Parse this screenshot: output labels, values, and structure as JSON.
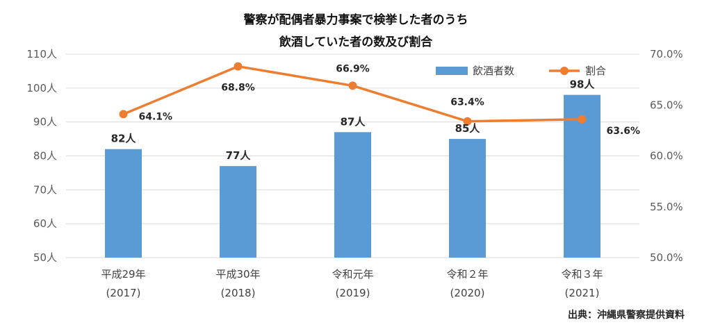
{
  "chart_data": {
    "type": "bar",
    "title_lines": [
      "警察が配偶者暴力事案で検挙した者のうち",
      "飲酒していた者の数及び割合"
    ],
    "categories": [
      {
        "name": "平成29年",
        "year": "(2017)"
      },
      {
        "name": "平成30年",
        "year": "(2018)"
      },
      {
        "name": "令和元年",
        "year": "(2019)"
      },
      {
        "name": "令和２年",
        "year": "(2020)"
      },
      {
        "name": "令和３年",
        "year": "(2021)"
      }
    ],
    "series": [
      {
        "name": "飲酒者数",
        "type": "bar",
        "axis": "left",
        "color": "#5b9bd5",
        "values": [
          82,
          77,
          87,
          85,
          98
        ],
        "labels": [
          "82人",
          "77人",
          "87人",
          "85人",
          "98人"
        ]
      },
      {
        "name": "割合",
        "type": "line",
        "axis": "right",
        "color": "#ed7d31",
        "values": [
          64.1,
          68.8,
          66.9,
          63.4,
          63.6
        ],
        "labels": [
          "64.1%",
          "68.8%",
          "66.9%",
          "63.4%",
          "63.6%"
        ]
      }
    ],
    "y_left": {
      "min": 50,
      "max": 110,
      "ticks": [
        50,
        60,
        70,
        80,
        90,
        100,
        110
      ],
      "tick_labels": [
        "50人",
        "60人",
        "70人",
        "80人",
        "90人",
        "100人",
        "110人"
      ]
    },
    "y_right": {
      "min": 50,
      "max": 70,
      "ticks": [
        50,
        55,
        60,
        65,
        70
      ],
      "tick_labels": [
        "50.0%",
        "55.0%",
        "60.0%",
        "65.0%",
        "70.0%"
      ]
    },
    "grid": true,
    "legend_position": "top-right",
    "source": "出典：沖縄県警察提供資料"
  }
}
